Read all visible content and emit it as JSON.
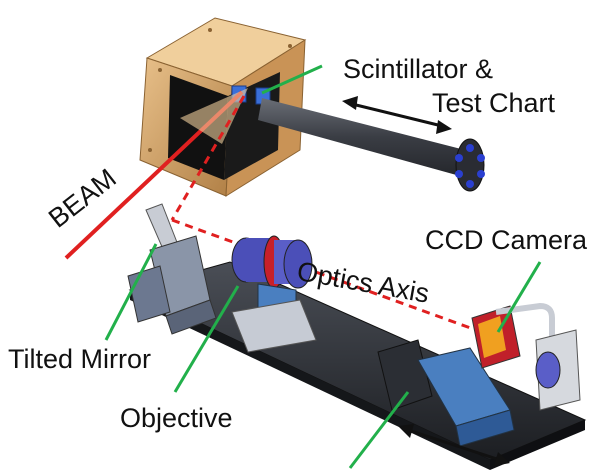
{
  "labels": {
    "scintillator": "Scintillator &",
    "test_chart": "Test Chart",
    "beam": "BEAM",
    "ccd_camera": "CCD Camera",
    "optics_axis": "Optics Axis",
    "tilted_mirror": "Tilted Mirror",
    "objective": "Objective"
  },
  "colors": {
    "beam": "#e02020",
    "optics_axis": "#e02020",
    "pointer": "#22b04b",
    "housing": "#d4a56a",
    "rail": "#2a2d33",
    "stage_blue": "#4a7fc0",
    "lens_red": "#c8202a",
    "lens_blue": "#4b4fb8"
  }
}
